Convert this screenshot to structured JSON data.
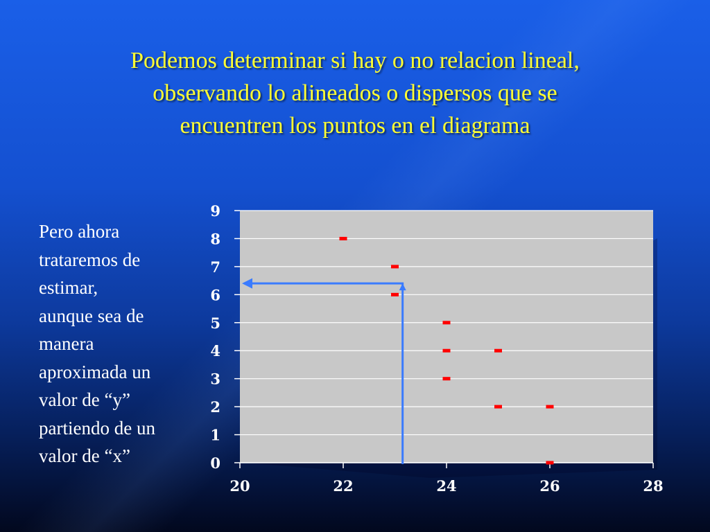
{
  "slide": {
    "title_lines": [
      "Podemos determinar si hay o no relacion lineal,",
      "observando lo alineados o dispersos que se",
      "encuentren los puntos en el diagrama"
    ],
    "body_lines": [
      "Pero ahora",
      "trataremos de",
      "estimar,",
      "aunque sea de",
      "manera",
      "aproximada un",
      "valor de “y”",
      "partiendo de un",
      "valor de “x”"
    ]
  },
  "colors": {
    "title": "#ffff33",
    "body_text": "#ffffff",
    "plot_area": "#c8c8c8",
    "gridline": "#ffffff",
    "marker": "#ff0000",
    "arrow": "#3a7bff"
  },
  "chart_data": {
    "type": "scatter",
    "title": "",
    "xlabel": "",
    "ylabel": "",
    "xlim": [
      20,
      28
    ],
    "ylim": [
      0,
      9
    ],
    "x_ticks": [
      "20",
      "22",
      "24",
      "26",
      "28"
    ],
    "y_ticks": [
      "0",
      "1",
      "2",
      "3",
      "4",
      "5",
      "6",
      "7",
      "8",
      "9"
    ],
    "grid": "horizontal",
    "marker": "dash",
    "series": [
      {
        "points": [
          [
            22,
            8
          ],
          [
            23,
            7
          ],
          [
            23,
            6
          ],
          [
            24,
            5
          ],
          [
            24,
            4
          ],
          [
            24,
            3
          ],
          [
            25,
            4
          ],
          [
            25,
            2
          ],
          [
            26,
            2
          ],
          [
            26,
            0
          ]
        ]
      }
    ],
    "annotation": {
      "type": "estimation-arrow",
      "x": 23.15,
      "y": 6.4
    }
  }
}
